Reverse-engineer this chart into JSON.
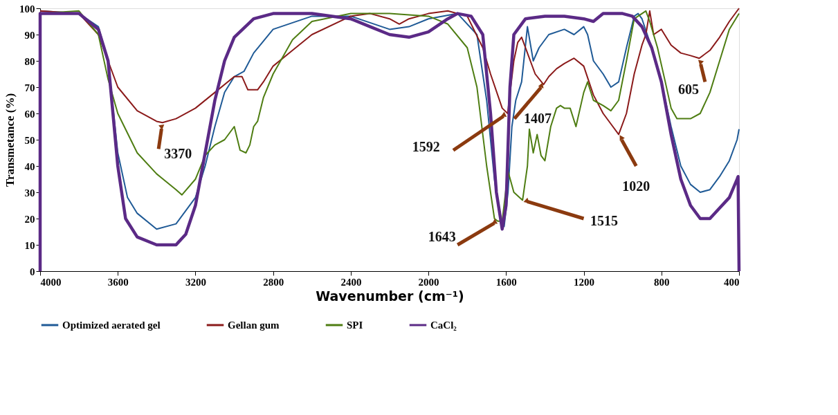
{
  "chart_data": {
    "type": "line",
    "xlabel": "Wavenumber (cm⁻¹)",
    "ylabel": "Transmetance (%)",
    "xlim": [
      4000,
      400
    ],
    "xticks": [
      4000,
      3600,
      3200,
      2800,
      2400,
      2000,
      1600,
      1200,
      800,
      400
    ],
    "ylim": [
      0,
      100
    ],
    "yticks": [
      0,
      10,
      20,
      30,
      40,
      50,
      60,
      70,
      80,
      90,
      100
    ],
    "grid": false,
    "legend": "bottom",
    "marker": "none",
    "line_style": "solid",
    "series": [
      {
        "name": "Optimized aerated gel",
        "color": "#1f5a96",
        "x": [
          4000,
          3800,
          3700,
          3650,
          3600,
          3550,
          3500,
          3400,
          3300,
          3200,
          3150,
          3100,
          3050,
          3000,
          2950,
          2900,
          2800,
          2600,
          2400,
          2200,
          2100,
          2000,
          1850,
          1750,
          1700,
          1660,
          1630,
          1610,
          1590,
          1570,
          1550,
          1520,
          1490,
          1460,
          1430,
          1380,
          1300,
          1250,
          1200,
          1180,
          1150,
          1100,
          1060,
          1020,
          980,
          940,
          920,
          900,
          850,
          800,
          750,
          700,
          650,
          600,
          550,
          500,
          450,
          410,
          400
        ],
        "values": [
          99,
          98,
          93,
          80,
          45,
          28,
          22,
          16,
          18,
          28,
          40,
          55,
          68,
          74,
          76,
          83,
          92,
          97,
          97,
          92,
          93,
          96,
          98,
          90,
          65,
          35,
          20,
          17,
          30,
          55,
          65,
          72,
          93,
          80,
          85,
          90,
          92,
          90,
          93,
          90,
          80,
          75,
          70,
          72,
          85,
          97,
          98,
          96,
          85,
          72,
          55,
          40,
          33,
          30,
          31,
          36,
          42,
          50,
          54
        ]
      },
      {
        "name": "Gellan gum",
        "color": "#8b1a1a",
        "x": [
          4000,
          3800,
          3700,
          3650,
          3600,
          3500,
          3400,
          3370,
          3300,
          3200,
          3100,
          3000,
          2960,
          2930,
          2880,
          2850,
          2800,
          2700,
          2600,
          2400,
          2300,
          2200,
          2150,
          2100,
          2000,
          1900,
          1800,
          1720,
          1680,
          1620,
          1592,
          1560,
          1540,
          1520,
          1500,
          1450,
          1407,
          1380,
          1340,
          1300,
          1250,
          1200,
          1150,
          1100,
          1050,
          1020,
          980,
          940,
          900,
          880,
          860,
          840,
          800,
          750,
          700,
          650,
          605,
          550,
          500,
          450,
          400
        ],
        "values": [
          99,
          98,
          90,
          80,
          70,
          61,
          57,
          56.5,
          58,
          62,
          68,
          74,
          74,
          69,
          69,
          72,
          78,
          84,
          90,
          97,
          98,
          96,
          94,
          96,
          98,
          99,
          97,
          85,
          75,
          62,
          60,
          80,
          87,
          89,
          85,
          75,
          71,
          74,
          77,
          79,
          81,
          78,
          67,
          60,
          55,
          52,
          60,
          75,
          86,
          90,
          99,
          90,
          92,
          86,
          83,
          82,
          81,
          84,
          89,
          95,
          100
        ]
      },
      {
        "name": "SPI",
        "color": "#4e7d12",
        "x": [
          4000,
          3800,
          3700,
          3650,
          3600,
          3500,
          3400,
          3300,
          3270,
          3200,
          3150,
          3100,
          3050,
          3000,
          2970,
          2940,
          2920,
          2900,
          2880,
          2850,
          2800,
          2700,
          2600,
          2400,
          2200,
          2000,
          1900,
          1800,
          1750,
          1700,
          1660,
          1643,
          1620,
          1590,
          1560,
          1515,
          1490,
          1480,
          1460,
          1440,
          1420,
          1400,
          1370,
          1340,
          1320,
          1300,
          1270,
          1240,
          1200,
          1180,
          1150,
          1100,
          1060,
          1020,
          980,
          940,
          900,
          880,
          860,
          820,
          780,
          750,
          720,
          700,
          650,
          600,
          550,
          500,
          450,
          400
        ],
        "values": [
          98,
          99,
          90,
          73,
          60,
          45,
          37,
          31,
          29,
          35,
          44,
          48,
          50,
          55,
          46,
          45,
          48,
          55,
          57,
          66,
          75,
          88,
          95,
          98,
          98,
          97,
          94,
          85,
          70,
          40,
          20,
          19,
          19,
          38,
          30,
          27,
          40,
          54,
          45,
          52,
          44,
          42,
          55,
          62,
          63,
          62,
          62,
          55,
          68,
          72,
          65,
          63,
          61,
          65,
          80,
          96,
          98,
          99,
          95,
          85,
          72,
          62,
          58,
          58,
          58,
          60,
          68,
          80,
          92,
          98
        ]
      },
      {
        "name": "CaCl₂",
        "color": "#5b2a86",
        "x": [
          4000,
          4000,
          3800,
          3700,
          3650,
          3600,
          3560,
          3500,
          3400,
          3300,
          3250,
          3200,
          3150,
          3100,
          3050,
          3000,
          2900,
          2800,
          2600,
          2400,
          2300,
          2200,
          2100,
          2000,
          1900,
          1850,
          1780,
          1720,
          1680,
          1650,
          1620,
          1600,
          1580,
          1560,
          1500,
          1400,
          1300,
          1200,
          1150,
          1100,
          1000,
          950,
          900,
          850,
          800,
          750,
          700,
          650,
          600,
          550,
          500,
          450,
          410,
          405,
          400
        ],
        "values": [
          0,
          98,
          98,
          92,
          80,
          40,
          20,
          13,
          10,
          10,
          14,
          25,
          45,
          65,
          80,
          89,
          96,
          98,
          98,
          96,
          93,
          90,
          89,
          91,
          96,
          98,
          97,
          90,
          60,
          30,
          16,
          25,
          70,
          90,
          96,
          97,
          97,
          96,
          95,
          98,
          98,
          97,
          93,
          85,
          72,
          52,
          35,
          25,
          20,
          20,
          24,
          28,
          35,
          36,
          0
        ]
      }
    ],
    "annotations": [
      {
        "text": "3370",
        "x": 3370,
        "y": 56.5
      },
      {
        "text": "1592",
        "x": 1592,
        "y": 60
      },
      {
        "text": "1407",
        "x": 1407,
        "y": 71
      },
      {
        "text": "1643",
        "x": 1643,
        "y": 19
      },
      {
        "text": "1515",
        "x": 1515,
        "y": 27
      },
      {
        "text": "1020",
        "x": 1020,
        "y": 52
      },
      {
        "text": "605",
        "x": 605,
        "y": 81
      }
    ]
  }
}
